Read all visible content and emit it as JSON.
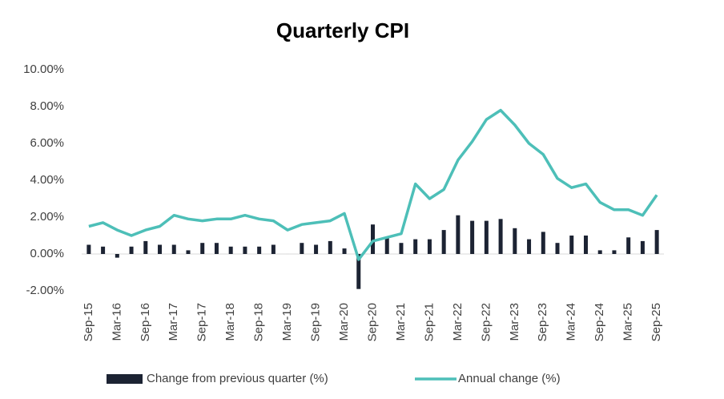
{
  "chart_data": {
    "type": "bar-line",
    "title": "Quarterly CPI",
    "categories": [
      "Sep-15",
      null,
      "Mar-16",
      null,
      "Sep-16",
      null,
      "Mar-17",
      null,
      "Sep-17",
      null,
      "Mar-18",
      null,
      "Sep-18",
      null,
      "Mar-19",
      null,
      "Sep-19",
      null,
      "Mar-20",
      null,
      "Sep-20",
      null,
      "Mar-21",
      null,
      "Sep-21",
      null,
      "Mar-22",
      null,
      "Sep-22",
      null,
      "Mar-23",
      null,
      "Sep-23",
      null,
      "Mar-24",
      null,
      "Sep-24",
      null,
      "Mar-25",
      null,
      "Sep-25"
    ],
    "series": [
      {
        "name": "Change from previous quarter (%)",
        "type": "bar",
        "color": "#1c2333",
        "values": [
          0.5,
          0.4,
          -0.2,
          0.4,
          0.7,
          0.5,
          0.5,
          0.2,
          0.6,
          0.6,
          0.4,
          0.4,
          0.4,
          0.5,
          0.0,
          0.6,
          0.5,
          0.7,
          0.3,
          -1.9,
          1.6,
          0.9,
          0.6,
          0.8,
          0.8,
          1.3,
          2.1,
          1.8,
          1.8,
          1.9,
          1.4,
          0.8,
          1.2,
          0.6,
          1.0,
          1.0,
          0.2,
          0.2,
          0.9,
          0.7,
          1.3
        ]
      },
      {
        "name": "Annual change (%)",
        "type": "line",
        "color": "#4dbfb8",
        "values": [
          1.5,
          1.7,
          1.3,
          1.0,
          1.3,
          1.5,
          2.1,
          1.9,
          1.8,
          1.9,
          1.9,
          2.1,
          1.9,
          1.8,
          1.3,
          1.6,
          1.7,
          1.8,
          2.2,
          -0.3,
          0.7,
          0.9,
          1.1,
          3.8,
          3.0,
          3.5,
          5.1,
          6.1,
          7.3,
          7.8,
          7.0,
          6.0,
          5.4,
          4.1,
          3.6,
          3.8,
          2.8,
          2.4,
          2.4,
          2.1,
          3.2
        ]
      }
    ],
    "ylim": [
      -2,
      10
    ],
    "yticks": [
      {
        "value": -2,
        "label": "-2.00%"
      },
      {
        "value": 0,
        "label": "0.00%"
      },
      {
        "value": 2,
        "label": "2.00%"
      },
      {
        "value": 4,
        "label": "4.00%"
      },
      {
        "value": 6,
        "label": "6.00%"
      },
      {
        "value": 8,
        "label": "8.00%"
      },
      {
        "value": 10,
        "label": "10.00%"
      }
    ],
    "legend": "bottom"
  }
}
